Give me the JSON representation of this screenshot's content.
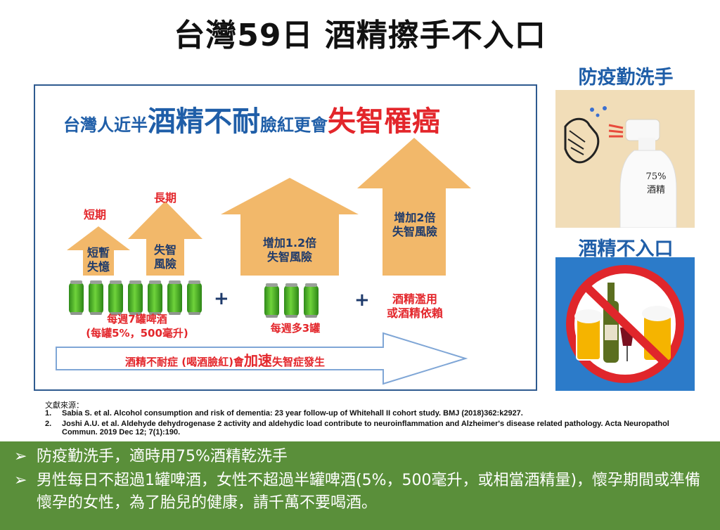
{
  "title": "台灣59日 酒精擦手不入口",
  "infographic": {
    "headline": {
      "part1": "台灣人近半",
      "part2": "酒精不耐",
      "part3": "臉紅更會",
      "part4": "失智罹癌"
    },
    "short_term_label": "短期",
    "long_term_label": "長期",
    "arrow1_text": "短暫\n失憶",
    "arrow2_text": "失智\n風險",
    "arrow3_text": "增加1.2倍\n失智風險",
    "arrow4_text": "增加2倍\n失智風險",
    "cans1_caption": "每週7罐啤酒\n(每罐5%，500毫升)",
    "cans2_caption": "每週多3罐",
    "abuse_text": "酒精濫用\n或酒精依賴",
    "plus1": "+",
    "plus2": "+",
    "bottom_arrow": {
      "part1": "酒精不耐症 (喝酒臉紅)會",
      "part2": "加速",
      "part3": "失智症發生"
    },
    "can_count_week": 7,
    "can_count_extra": 3
  },
  "sidebar": {
    "top_title": "防疫勤洗手",
    "bottle_label": "75%\n酒精",
    "bottom_title": "酒精不入口"
  },
  "references": {
    "heading": "文獻來源：",
    "items": [
      {
        "num": "1.",
        "text": "Sabia S. et al. Alcohol consumption and risk of dementia: 23 year follow-up of Whitehall II cohort study. BMJ (2018)362:k2927."
      },
      {
        "num": "2.",
        "text": "Joshi A.U. et al. Aldehyde dehydrogenase 2 activity and aldehydic load contribute to neuroinflammation and Alzheimer's disease related pathology. Acta Neuropathol Commun. 2019 Dec 12; 7(1):190."
      }
    ]
  },
  "bullets": [
    "防疫勤洗手，適時用75%酒精乾洗手",
    "男性每日不超過1罐啤酒，女性不超過半罐啤酒(5%，500毫升，或相當酒精量)，懷孕期間或準備懷孕的女性，為了胎兒的健康，請千萬不要喝酒。"
  ],
  "bullet_marker": "➢",
  "colors": {
    "blue": "#1f5ea8",
    "red": "#e3262b",
    "arrow_orange": "#f2b86a",
    "green_bar": "#5a8f3a",
    "can_green": "#4fbf2a"
  }
}
